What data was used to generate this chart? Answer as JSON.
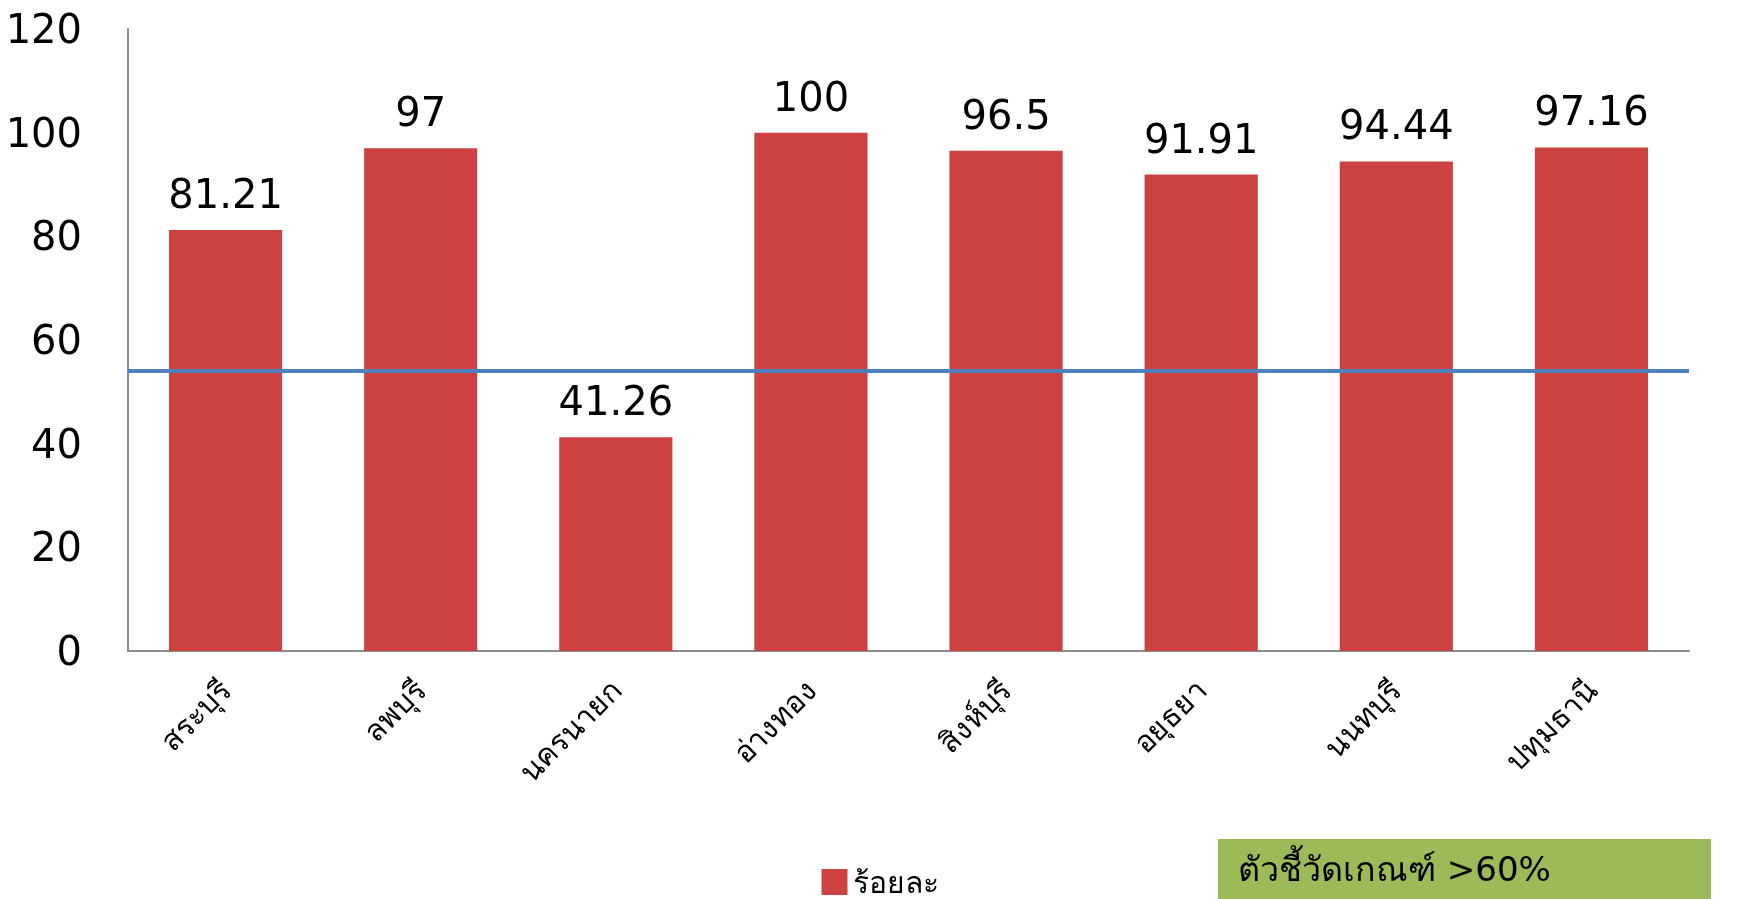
{
  "chart_data": {
    "type": "bar",
    "categories": [
      "สระบุรี",
      "ลพบุรี",
      "นครนายก",
      "อ่างทอง",
      "สิงห์บุรี",
      "อยุธยา",
      "นนทบุรี",
      "ปทุมธานี"
    ],
    "series": [
      {
        "name": "ร้อยละ",
        "color": "#cc4240",
        "values": [
          81.21,
          97,
          41.26,
          100,
          96.5,
          91.91,
          94.44,
          97.16
        ]
      }
    ],
    "ylim": [
      0,
      120
    ],
    "yticks": [
      0,
      20,
      40,
      60,
      80,
      100,
      120
    ],
    "legend": "bottom",
    "data_labels": true,
    "ref_lines": [
      {
        "axis": "y",
        "value": 54,
        "color": "#4f81bd"
      }
    ],
    "annotations": [
      "ตัวชี้วัดเกณฑ์ >60%"
    ]
  }
}
